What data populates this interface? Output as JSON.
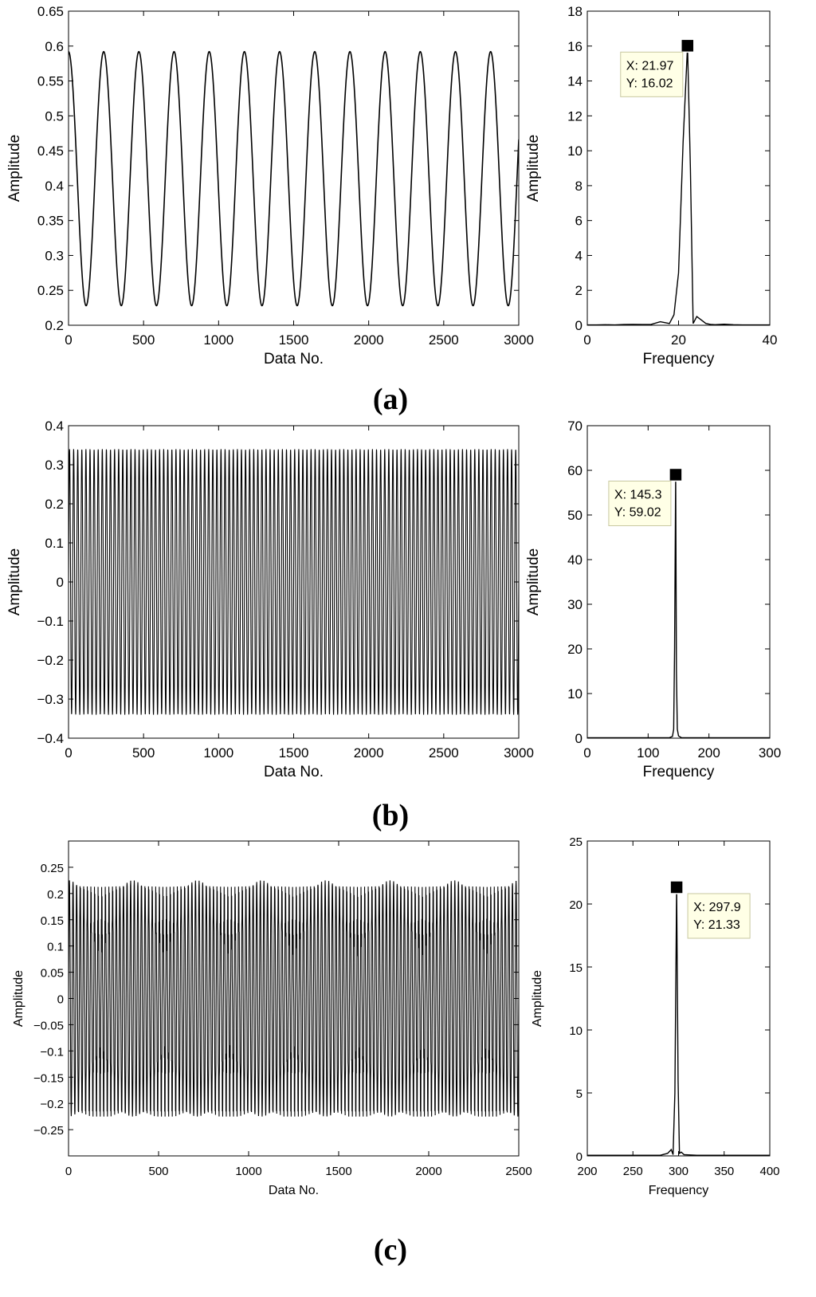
{
  "panels": [
    {
      "label": "(a)",
      "time": {
        "type": "line",
        "xlabel": "Data No.",
        "ylabel": "Amplitude",
        "xlim": [
          0,
          3000
        ],
        "ylim": [
          0.2,
          0.65
        ],
        "xticks": [
          "0",
          "500",
          "1000",
          "1500",
          "2000",
          "2500",
          "3000"
        ],
        "yticks": [
          "0.2",
          "0.25",
          "0.3",
          "0.35",
          "0.4",
          "0.45",
          "0.5",
          "0.55",
          "0.6",
          "0.65"
        ],
        "signal": {
          "kind": "sine",
          "n": 3000,
          "min": 0.228,
          "max": 0.592,
          "cycles": 12.8,
          "phase_deg": 90
        },
        "grid": false
      },
      "spectrum": {
        "type": "line",
        "xlabel": "Frequency",
        "ylabel": "Amplitude",
        "xlim": [
          0,
          40
        ],
        "ylim": [
          0,
          18
        ],
        "xticks": [
          "0",
          "20",
          "40"
        ],
        "yticks": [
          "0",
          "2",
          "4",
          "6",
          "8",
          "10",
          "12",
          "14",
          "16",
          "18"
        ],
        "points": [
          [
            0,
            0.02
          ],
          [
            2,
            0.02
          ],
          [
            4,
            0.03
          ],
          [
            6,
            0.02
          ],
          [
            8,
            0.04
          ],
          [
            10,
            0.05
          ],
          [
            12,
            0.04
          ],
          [
            14,
            0.05
          ],
          [
            16,
            0.2
          ],
          [
            18,
            0.1
          ],
          [
            19,
            0.6
          ],
          [
            20,
            3.0
          ],
          [
            21,
            10.5
          ],
          [
            21.97,
            16.02
          ],
          [
            22.6,
            9.0
          ],
          [
            23.2,
            0.1
          ],
          [
            24,
            0.5
          ],
          [
            25,
            0.3
          ],
          [
            26,
            0.1
          ],
          [
            27,
            0.05
          ],
          [
            28,
            0.03
          ],
          [
            30,
            0.06
          ],
          [
            32,
            0.03
          ],
          [
            34,
            0.02
          ],
          [
            40,
            0.02
          ]
        ],
        "datatip": {
          "x_label": "X: 21.97",
          "y_label": "Y: 16.02",
          "x": 21.97,
          "y": 16.02
        },
        "grid": false
      }
    },
    {
      "label": "(b)",
      "time": {
        "type": "line",
        "xlabel": "Data No.",
        "ylabel": "Amplitude",
        "xlim": [
          0,
          3000
        ],
        "ylim": [
          -0.4,
          0.4
        ],
        "xticks": [
          "0",
          "500",
          "1000",
          "1500",
          "2000",
          "2500",
          "3000"
        ],
        "yticks": [
          "−0.4",
          "−0.3",
          "−0.2",
          "−0.1",
          "0",
          "0.1",
          "0.2",
          "0.3",
          "0.4"
        ],
        "signal": {
          "kind": "sine",
          "n": 3000,
          "min": -0.34,
          "max": 0.34,
          "cycles": 110,
          "phase_deg": 0
        },
        "grid": false
      },
      "spectrum": {
        "type": "line",
        "xlabel": "Frequency",
        "ylabel": "Amplitude",
        "xlim": [
          0,
          300
        ],
        "ylim": [
          0,
          70
        ],
        "xticks": [
          "0",
          "100",
          "200",
          "300"
        ],
        "yticks": [
          "0",
          "10",
          "20",
          "30",
          "40",
          "50",
          "60",
          "70"
        ],
        "points": [
          [
            0,
            0.1
          ],
          [
            100,
            0.1
          ],
          [
            135,
            0.1
          ],
          [
            140,
            0.4
          ],
          [
            142,
            2.0
          ],
          [
            143.5,
            20.0
          ],
          [
            145.3,
            59.02
          ],
          [
            146.5,
            15.0
          ],
          [
            148,
            2.0
          ],
          [
            150,
            0.5
          ],
          [
            155,
            0.1
          ],
          [
            200,
            0.1
          ],
          [
            300,
            0.1
          ]
        ],
        "datatip": {
          "x_label": "X: 145.3",
          "y_label": "Y: 59.02",
          "x": 145.3,
          "y": 59.02
        },
        "grid": false
      }
    },
    {
      "label": "(c)",
      "time": {
        "type": "line",
        "xlabel": "Data No.",
        "ylabel": "Amplitude",
        "xlim": [
          0,
          2500
        ],
        "ylim": [
          -0.3,
          0.3
        ],
        "xticks": [
          "0",
          "500",
          "1000",
          "1500",
          "2000",
          "2500"
        ],
        "yticks": [
          "−0.25",
          "−0.2",
          "−0.15",
          "−0.1",
          "−0.05",
          "0",
          "0.05",
          "0.1",
          "0.15",
          "0.2",
          "0.25"
        ],
        "signal": {
          "kind": "beat",
          "n": 2500,
          "min": -0.225,
          "max": 0.225,
          "cycles": 125,
          "phase_deg": 0
        },
        "grid": false
      },
      "spectrum": {
        "type": "line",
        "xlabel": "Frequency",
        "ylabel": "Amplitude",
        "xlim": [
          200,
          400
        ],
        "ylim": [
          0,
          25
        ],
        "xticks": [
          "200",
          "250",
          "300",
          "350",
          "400"
        ],
        "yticks": [
          "0",
          "5",
          "10",
          "15",
          "20",
          "25"
        ],
        "points": [
          [
            200,
            0.05
          ],
          [
            280,
            0.05
          ],
          [
            288,
            0.2
          ],
          [
            292,
            0.5
          ],
          [
            294,
            0.1
          ],
          [
            296,
            5.0
          ],
          [
            297.9,
            21.33
          ],
          [
            299.5,
            6.0
          ],
          [
            301,
            0.2
          ],
          [
            303,
            0.3
          ],
          [
            306,
            0.1
          ],
          [
            320,
            0.05
          ],
          [
            400,
            0.05
          ]
        ],
        "datatip": {
          "x_label": "X: 297.9",
          "y_label": "Y: 21.33",
          "x": 297.9,
          "y": 21.33
        },
        "grid": false
      }
    }
  ]
}
